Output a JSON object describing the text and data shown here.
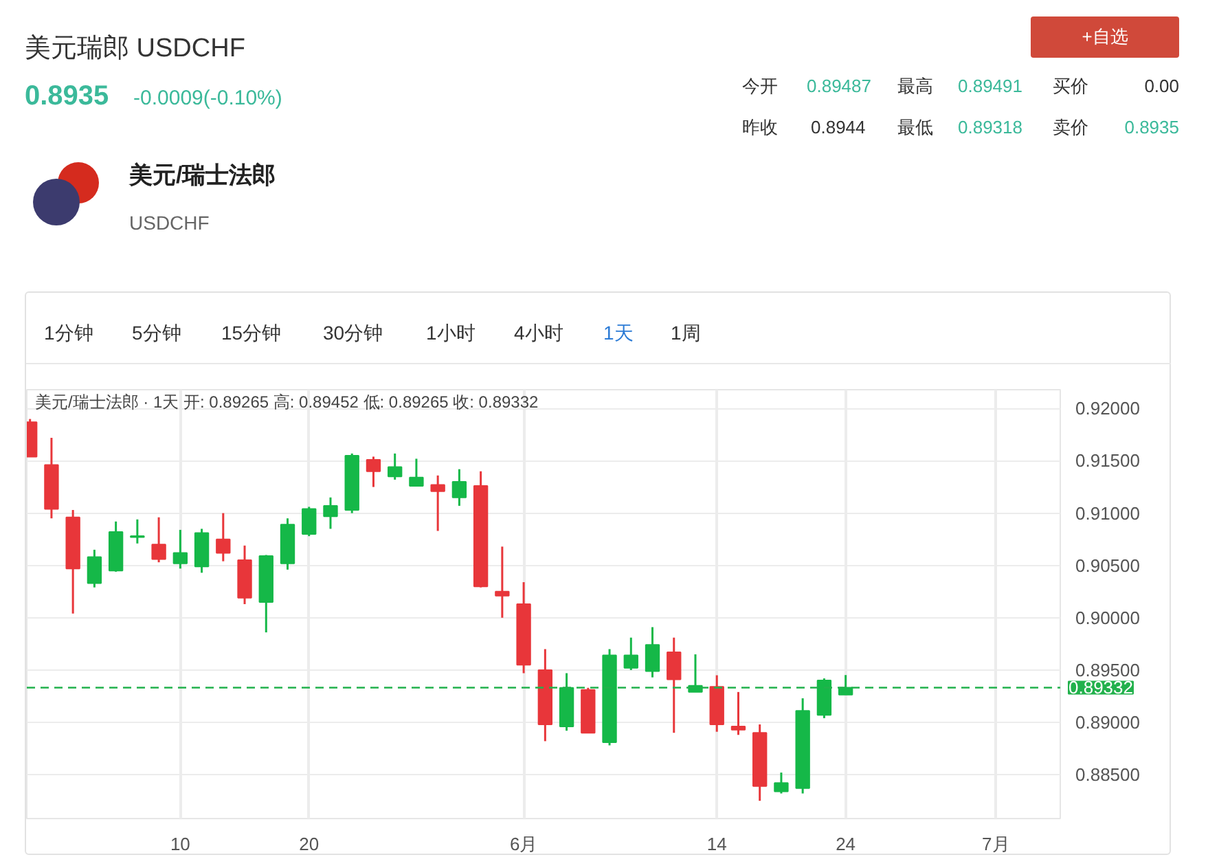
{
  "chart_data": {
    "type": "candlestick",
    "title": "美元瑞郎 USDCHF",
    "subtitle": "美元/瑞士法郎 · 1天  开: 0.89265  高: 0.89452  低: 0.89265  收: 0.89332",
    "annotations": [
      "0.8935",
      "-0.0009(-0.10%)",
      "今开",
      "0.89487",
      "最高",
      "0.89491",
      "买价",
      "0.00",
      "昨收",
      "0.8944",
      "最低",
      "0.89318",
      "卖价",
      "0.8935",
      "美元/瑞士法郎",
      "USDCHF",
      "+自选",
      "1分钟",
      "5分钟",
      "15分钟",
      "30分钟",
      "1小时",
      "4小时",
      "1天",
      "1周"
    ],
    "categories": [
      null,
      null,
      null,
      null,
      null,
      null,
      null,
      "10",
      null,
      null,
      null,
      null,
      null,
      "20",
      null,
      null,
      null,
      null,
      null,
      null,
      null,
      null,
      null,
      "6月",
      null,
      null,
      null,
      null,
      null,
      null,
      null,
      null,
      "14",
      null,
      null,
      null,
      null,
      null,
      "24",
      null,
      null,
      null,
      null,
      null,
      null,
      "7月",
      null,
      null
    ],
    "ohlc": [
      [
        0.9187,
        0.919,
        0.9154,
        0.9154
      ],
      [
        0.9146,
        0.9172,
        0.9095,
        0.9104
      ],
      [
        0.9096,
        0.9103,
        0.9004,
        0.9047
      ],
      [
        0.9033,
        0.9065,
        0.9029,
        0.9058
      ],
      [
        0.9045,
        0.9092,
        0.9044,
        0.9082
      ],
      [
        0.9077,
        0.9094,
        0.9071,
        0.9078
      ],
      [
        0.907,
        0.9096,
        0.9053,
        0.9056
      ],
      [
        0.9052,
        0.9084,
        0.9047,
        0.9062
      ],
      [
        0.9049,
        0.9085,
        0.9043,
        0.9081
      ],
      [
        0.9075,
        0.91,
        0.9054,
        0.9062
      ],
      [
        0.9055,
        0.9069,
        0.9013,
        0.9019
      ],
      [
        0.9015,
        0.906,
        0.8986,
        0.9059
      ],
      [
        0.9052,
        0.9095,
        0.9046,
        0.9089
      ],
      [
        0.908,
        0.9106,
        0.9078,
        0.9104
      ],
      [
        0.9097,
        0.9115,
        0.9085,
        0.9107
      ],
      [
        0.9103,
        0.9157,
        0.91,
        0.9155
      ],
      [
        0.9151,
        0.9154,
        0.9125,
        0.914
      ],
      [
        0.9135,
        0.9157,
        0.9132,
        0.9144
      ],
      [
        0.9126,
        0.9152,
        0.9126,
        0.9134
      ],
      [
        0.9127,
        0.9136,
        0.9083,
        0.9121
      ],
      [
        0.9115,
        0.9142,
        0.9107,
        0.913
      ],
      [
        0.9126,
        0.914,
        0.9029,
        0.903
      ],
      [
        0.9025,
        0.9068,
        0.9,
        0.9021
      ],
      [
        0.9013,
        0.9034,
        0.8947,
        0.8955
      ],
      [
        0.895,
        0.897,
        0.8882,
        0.8898
      ],
      [
        0.8896,
        0.8947,
        0.8892,
        0.8933
      ],
      [
        0.8931,
        0.8933,
        0.889,
        0.889
      ],
      [
        0.8881,
        0.897,
        0.8878,
        0.8964
      ],
      [
        0.8952,
        0.8981,
        0.895,
        0.8964
      ],
      [
        0.8949,
        0.8991,
        0.8943,
        0.8974
      ],
      [
        0.8967,
        0.8981,
        0.889,
        0.8941
      ],
      [
        0.8929,
        0.8965,
        0.8929,
        0.8935
      ],
      [
        0.8934,
        0.8945,
        0.8891,
        0.8898
      ],
      [
        0.8896,
        0.8929,
        0.8888,
        0.8893
      ],
      [
        0.889,
        0.8898,
        0.8825,
        0.8839
      ],
      [
        0.8834,
        0.8852,
        0.8832,
        0.8842
      ],
      [
        0.8837,
        0.8923,
        0.8832,
        0.8911
      ],
      [
        0.8907,
        0.8942,
        0.8904,
        0.894
      ],
      [
        0.89265,
        0.89452,
        0.89265,
        0.89332
      ],
      null,
      null,
      null,
      null,
      null,
      null,
      null,
      null,
      null
    ],
    "colors": [
      "#e8363a",
      "#e8363a",
      "#e8363a",
      "#15b848",
      "#15b848",
      "#15b848",
      "#e8363a",
      "#15b848",
      "#15b848",
      "#e8363a",
      "#e8363a",
      "#15b848",
      "#15b848",
      "#15b848",
      "#15b848",
      "#15b848",
      "#e8363a",
      "#15b848",
      "#15b848",
      "#e8363a",
      "#15b848",
      "#e8363a",
      "#e8363a",
      "#e8363a",
      "#e8363a",
      "#15b848",
      "#e8363a",
      "#15b848",
      "#15b848",
      "#15b848",
      "#e8363a",
      "#15b848",
      "#e8363a",
      "#e8363a",
      "#e8363a",
      "#15b848",
      "#15b848",
      "#15b848",
      "#15b848",
      null,
      null,
      null,
      null,
      null,
      null,
      null,
      null,
      null
    ],
    "ylim": [
      0.8808,
      0.9218
    ],
    "yticks": [
      {
        "value": 0.885,
        "label": "0.88500"
      },
      {
        "value": 0.89,
        "label": "0.89000"
      },
      {
        "value": 0.895,
        "label": "0.89500"
      },
      {
        "value": 0.9,
        "label": "0.90000"
      },
      {
        "value": 0.905,
        "label": "0.90500"
      },
      {
        "value": 0.91,
        "label": "0.91000"
      },
      {
        "value": 0.915,
        "label": "0.91500"
      },
      {
        "value": 0.92,
        "label": "0.92000"
      }
    ],
    "ref_lines": [
      {
        "axis": "y",
        "value": 0.89332,
        "label": "0.89332",
        "color": "#22b14c",
        "line_style": "dashed"
      }
    ],
    "grid": true
  }
}
